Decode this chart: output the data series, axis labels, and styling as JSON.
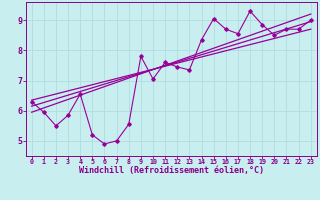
{
  "xlabel": "Windchill (Refroidissement éolien,°C)",
  "bg_color": "#c8eef0",
  "line_color": "#990099",
  "grid_color": "#b0dde0",
  "xlim": [
    -0.5,
    23.5
  ],
  "ylim": [
    4.5,
    9.6
  ],
  "xticks": [
    0,
    1,
    2,
    3,
    4,
    5,
    6,
    7,
    8,
    9,
    10,
    11,
    12,
    13,
    14,
    15,
    16,
    17,
    18,
    19,
    20,
    21,
    22,
    23
  ],
  "yticks": [
    5,
    6,
    7,
    8,
    9
  ],
  "scatter_x": [
    0,
    1,
    2,
    3,
    4,
    5,
    6,
    7,
    8,
    9,
    10,
    11,
    12,
    13,
    14,
    15,
    16,
    17,
    18,
    19,
    20,
    21,
    22,
    23
  ],
  "scatter_y": [
    6.3,
    5.95,
    5.5,
    5.85,
    6.55,
    5.2,
    4.9,
    5.0,
    5.55,
    7.8,
    7.05,
    7.6,
    7.45,
    7.35,
    8.35,
    9.05,
    8.7,
    8.55,
    9.3,
    8.85,
    8.5,
    8.7,
    8.7,
    9.0
  ],
  "line1_x": [
    0,
    23
  ],
  "line1_y": [
    6.15,
    8.95
  ],
  "line2_x": [
    0,
    23
  ],
  "line2_y": [
    6.35,
    8.7
  ],
  "line3_x": [
    0,
    23
  ],
  "line3_y": [
    5.95,
    9.2
  ],
  "font_color": "#880088",
  "xlabel_fontsize": 6.0,
  "tick_fontsize": 5.5
}
